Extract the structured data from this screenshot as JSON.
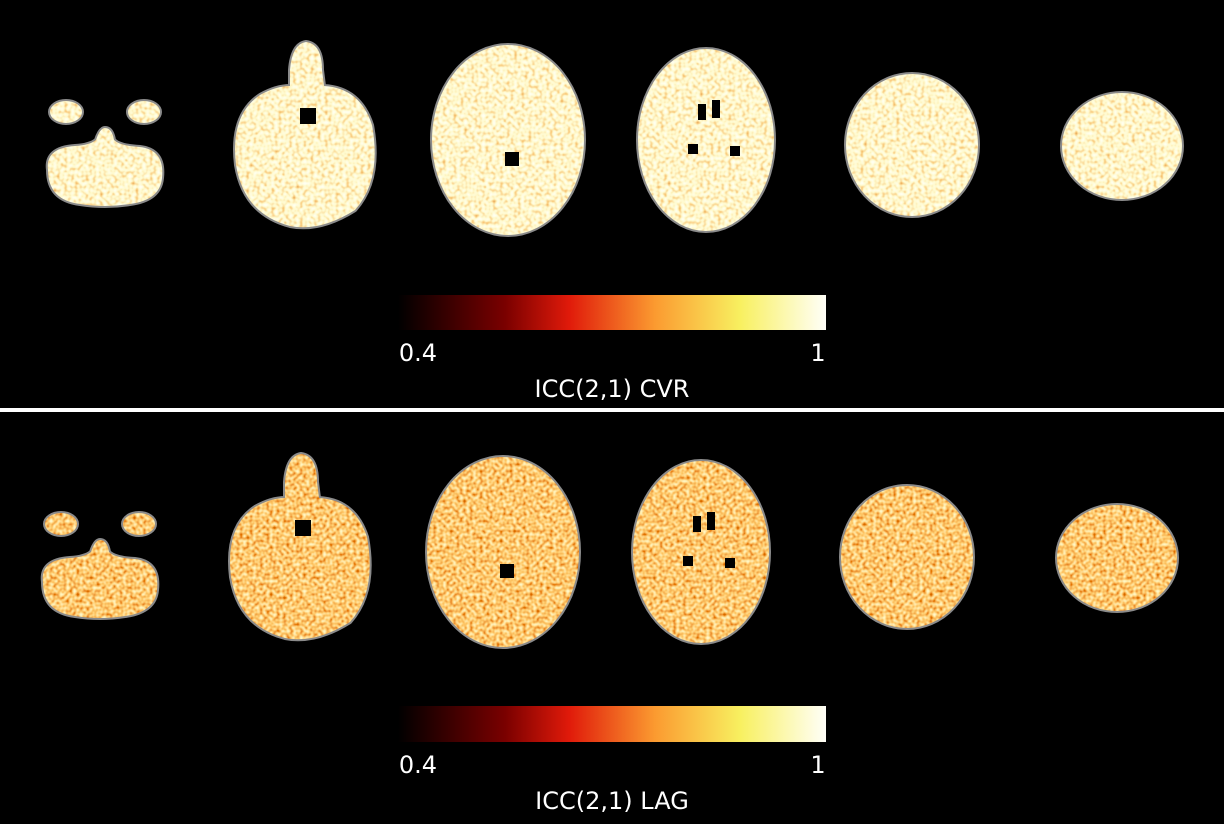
{
  "panels": [
    {
      "min_label": "0.4",
      "max_label": "1",
      "title": "ICC(2,1) CVR"
    },
    {
      "min_label": "0.4",
      "max_label": "1",
      "title": "ICC(2,1) LAG"
    }
  ]
}
